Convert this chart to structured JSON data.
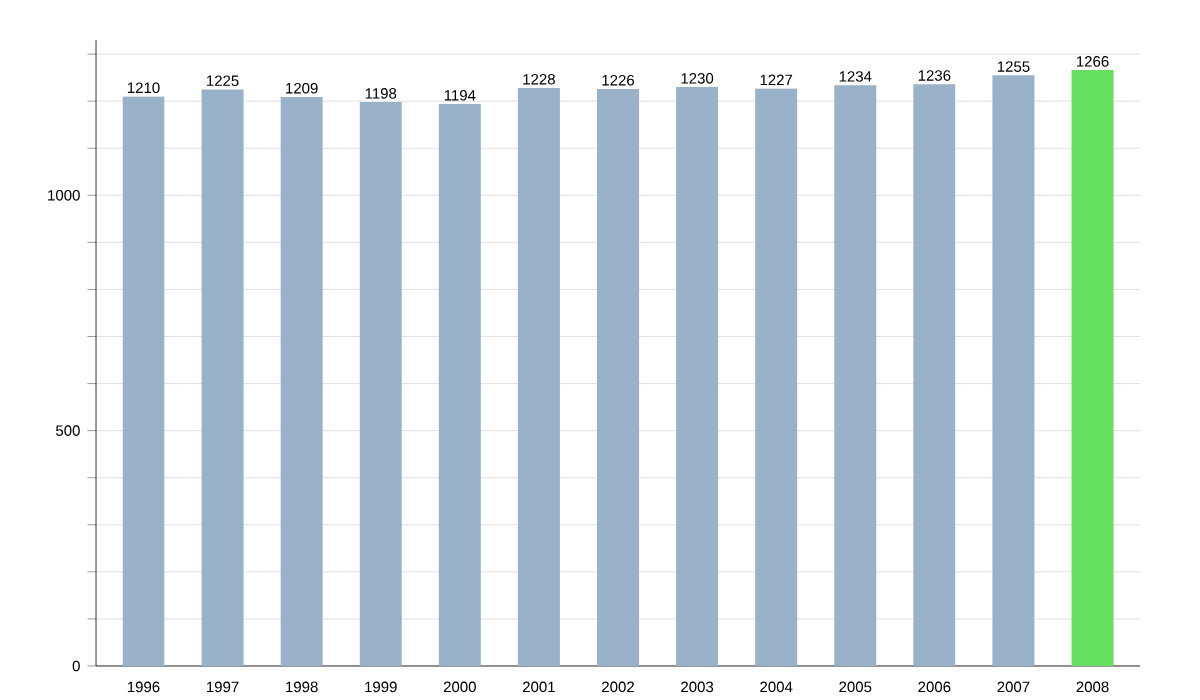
{
  "chart_data": {
    "type": "bar",
    "categories": [
      "1996",
      "1997",
      "1998",
      "1999",
      "2000",
      "2001",
      "2002",
      "2003",
      "2004",
      "2005",
      "2006",
      "2007",
      "2008"
    ],
    "values": [
      1210,
      1225,
      1209,
      1198,
      1194,
      1228,
      1226,
      1230,
      1227,
      1234,
      1236,
      1255,
      1266
    ],
    "colors": [
      "#9ab1ca",
      "#9ab1ca",
      "#9ab1ca",
      "#9ab1ca",
      "#9ab1ca",
      "#9ab1ca",
      "#9ab1ca",
      "#9ab1ca",
      "#9ab1ca",
      "#9ab1ca",
      "#9ab1ca",
      "#9ab1ca",
      "#66e060"
    ],
    "ylim": [
      0,
      1330
    ],
    "yticks": [
      0,
      {
        "value": 100,
        "label": null
      },
      {
        "value": 200,
        "label": null
      },
      {
        "value": 300,
        "label": null
      },
      {
        "value": 400,
        "label": null
      },
      500,
      {
        "value": 600,
        "label": null
      },
      {
        "value": 700,
        "label": null
      },
      {
        "value": 800,
        "label": null
      },
      {
        "value": 900,
        "label": null
      },
      1000,
      {
        "value": 1100,
        "label": null
      },
      {
        "value": 1200,
        "label": null
      },
      {
        "value": 1300,
        "label": null
      }
    ],
    "grid": "y",
    "data_labels": true
  }
}
